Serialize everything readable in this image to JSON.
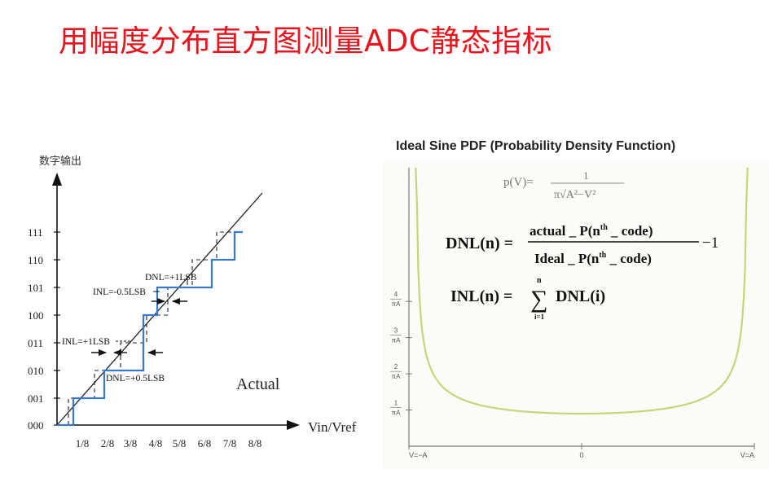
{
  "title": "用幅度分布直方图测量ADC静态指标",
  "left": {
    "y_axis_label": "数字输出",
    "x_axis_label": "Vin/Vref",
    "y_codes": [
      "111",
      "110",
      "101",
      "100",
      "011",
      "010",
      "001",
      "000"
    ],
    "x_ticks": [
      "1/8",
      "2/8",
      "3/8",
      "4/8",
      "5/8",
      "6/8",
      "7/8",
      "8/8"
    ],
    "actual_label": "Actual",
    "annotations": {
      "dnl_plus_1": "DNL=+1LSB",
      "inl_minus_half": "INL=-0.5LSB",
      "inl_plus_1": "INL=+1LSB",
      "dnl_plus_half": "DNL=+0.5LSB"
    },
    "colors": {
      "actual": "#3a78c8",
      "ideal": "#1a1a1a",
      "dashed": "#1a1a1a"
    }
  },
  "right": {
    "title": "Ideal Sine PDF (Probability Density Function)",
    "pdf_formula": "p(V)=",
    "pdf_num": "1",
    "pdf_den": "π√A²−V²",
    "dnl_lhs": "DNL(n) =",
    "dnl_num": "actual _ P(n",
    "dnl_den": "Ideal _ P(n",
    "sup_th": "th",
    "code_suffix": " _ code)",
    "dnl_tail": "−1",
    "inl_lhs": "INL(n) =",
    "inl_sum_top": "n",
    "inl_sum_bottom": "i=1",
    "inl_rhs": "DNL(i)",
    "y_ticks": [
      {
        "num": "4",
        "den": "πA",
        "level": 4
      },
      {
        "num": "3",
        "den": "πA",
        "level": 3
      },
      {
        "num": "2",
        "den": "πA",
        "level": 2
      },
      {
        "num": "1",
        "den": "πA",
        "level": 1
      }
    ],
    "x_ticks": [
      "V=−A",
      "0",
      "V=A"
    ],
    "curve_color": "#c8d47a"
  }
}
